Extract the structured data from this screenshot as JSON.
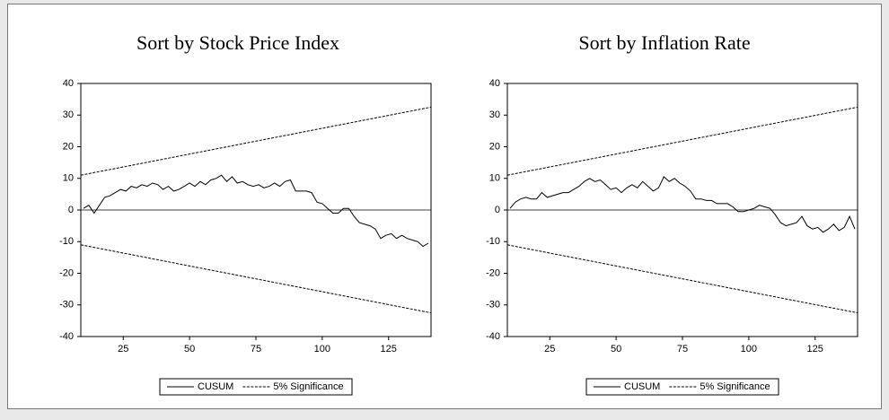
{
  "chart_data": [
    {
      "type": "line",
      "title": "Sort by Stock Price Index",
      "x": [
        10,
        12,
        14,
        16,
        18,
        20,
        22,
        24,
        26,
        28,
        30,
        32,
        34,
        36,
        38,
        40,
        42,
        44,
        46,
        48,
        50,
        52,
        54,
        56,
        58,
        60,
        62,
        64,
        66,
        68,
        70,
        72,
        74,
        76,
        78,
        80,
        82,
        84,
        86,
        88,
        90,
        92,
        94,
        96,
        98,
        100,
        102,
        104,
        106,
        108,
        110,
        112,
        114,
        116,
        118,
        120,
        122,
        124,
        126,
        128,
        130,
        132,
        134,
        136,
        138,
        140
      ],
      "series": [
        {
          "name": "CUSUM",
          "color": "#000000",
          "dash": false,
          "values": [
            0.5,
            1.5,
            -1,
            1.5,
            4,
            4.5,
            5.5,
            6.5,
            6,
            7.5,
            7,
            8,
            7.5,
            8.5,
            8,
            6.5,
            7.5,
            6,
            6.5,
            7.5,
            8.5,
            7.5,
            9,
            8,
            9.5,
            10,
            11,
            9,
            10.5,
            8.5,
            9,
            8,
            7.5,
            8,
            7,
            7.5,
            8.5,
            7.5,
            9,
            9.5,
            6,
            6,
            6,
            5.5,
            2.5,
            2,
            0.5,
            -1,
            -1,
            0.5,
            0.5,
            -2,
            -4,
            -4.5,
            -5,
            -6,
            -9,
            -8,
            -7.5,
            -9,
            -8,
            -9,
            -9.5,
            -10,
            -11.5,
            -10.5
          ]
        },
        {
          "name": "5% Significance",
          "color": "#000000",
          "dash": true,
          "x": [
            9,
            141
          ],
          "values": [
            11,
            32.5
          ]
        },
        {
          "color": "#000000",
          "dash": true,
          "x": [
            9,
            141
          ],
          "values": [
            -11,
            -32.5
          ]
        }
      ],
      "xlim": [
        9,
        141
      ],
      "xticks": [
        25,
        50,
        75,
        100,
        125
      ],
      "ylim": [
        -40,
        40
      ],
      "yticks": [
        -40,
        -30,
        -20,
        -10,
        0,
        10,
        20,
        30,
        40
      ],
      "legend": "bottom"
    },
    {
      "type": "line",
      "title": "Sort by Inflation Rate",
      "x": [
        10,
        12,
        14,
        16,
        18,
        20,
        22,
        24,
        26,
        28,
        30,
        32,
        34,
        36,
        38,
        40,
        42,
        44,
        46,
        48,
        50,
        52,
        54,
        56,
        58,
        60,
        62,
        64,
        66,
        68,
        70,
        72,
        74,
        76,
        78,
        80,
        82,
        84,
        86,
        88,
        90,
        92,
        94,
        96,
        98,
        100,
        102,
        104,
        106,
        108,
        110,
        112,
        114,
        116,
        118,
        120,
        122,
        124,
        126,
        128,
        130,
        132,
        134,
        136,
        138,
        140
      ],
      "series": [
        {
          "name": "CUSUM",
          "color": "#000000",
          "dash": false,
          "values": [
            0.5,
            2.5,
            3.5,
            4,
            3.5,
            3.5,
            5.5,
            4,
            4.5,
            5,
            5.5,
            5.5,
            6.5,
            7.5,
            9,
            10,
            9,
            9.5,
            8,
            6.5,
            7,
            5.5,
            7,
            8,
            7,
            9,
            7.5,
            6,
            7,
            10.5,
            9,
            10,
            8.5,
            7.5,
            6,
            3.5,
            3.5,
            3,
            3,
            2,
            2,
            2,
            1,
            -0.5,
            -0.5,
            0,
            0.5,
            1.5,
            1,
            0.5,
            -1.5,
            -4,
            -5,
            -4.5,
            -4,
            -2,
            -5,
            -6,
            -5.5,
            -7,
            -6,
            -4.5,
            -6.5,
            -5.5,
            -2,
            -6
          ]
        },
        {
          "name": "5% Significance",
          "color": "#000000",
          "dash": true,
          "x": [
            9,
            141
          ],
          "values": [
            11,
            32.5
          ]
        },
        {
          "color": "#000000",
          "dash": true,
          "x": [
            9,
            141
          ],
          "values": [
            -11,
            -32.5
          ]
        }
      ],
      "xlim": [
        9,
        141
      ],
      "xticks": [
        25,
        50,
        75,
        100,
        125
      ],
      "ylim": [
        -40,
        40
      ],
      "yticks": [
        -40,
        -30,
        -20,
        -10,
        0,
        10,
        20,
        30,
        40
      ],
      "legend": "bottom"
    }
  ]
}
